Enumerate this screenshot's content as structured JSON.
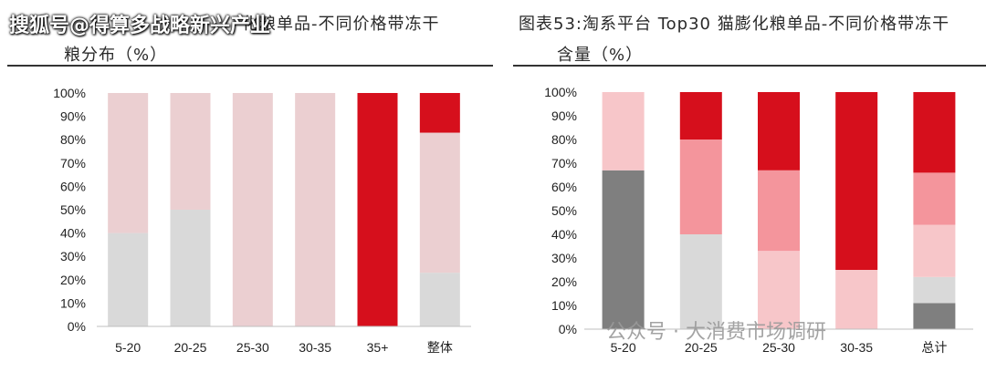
{
  "header": {
    "watermark": "搜狐号@得算多战略新兴产业",
    "left_title_line1": "化粮单品-不同价格带冻干",
    "left_title_line2": "粮分布（%）",
    "right_title_line1": "图表53:淘系平台 Top30 猫膨化粮单品-不同价格带冻干",
    "right_title_line2": "含量（%）"
  },
  "footer": {
    "watermark": "公众号 · 大消费市场调研"
  },
  "chart_data": [
    {
      "type": "bar",
      "stacked": true,
      "categories": [
        "5-20",
        "20-25",
        "25-30",
        "30-35",
        "35+",
        "整体"
      ],
      "yticks": [
        "0%",
        "10%",
        "20%",
        "30%",
        "40%",
        "50%",
        "60%",
        "70%",
        "80%",
        "90%",
        "100%"
      ],
      "ylim": [
        0,
        100
      ],
      "series": [
        {
          "color": "#d9d9d9",
          "values": [
            40,
            50,
            0,
            0,
            0,
            23
          ]
        },
        {
          "color": "#ebcfd1",
          "values": [
            60,
            50,
            100,
            100,
            0,
            60
          ]
        },
        {
          "color": "#d60f1c",
          "values": [
            0,
            0,
            0,
            0,
            100,
            17
          ]
        }
      ]
    },
    {
      "type": "bar",
      "stacked": true,
      "categories": [
        "5-20",
        "20-25",
        "25-30",
        "30-35",
        "总计"
      ],
      "yticks": [
        "0%",
        "10%",
        "20%",
        "30%",
        "40%",
        "50%",
        "60%",
        "70%",
        "80%",
        "90%",
        "100%"
      ],
      "ylim": [
        0,
        100
      ],
      "series": [
        {
          "color": "#7f7f7f",
          "values": [
            67,
            0,
            0,
            0,
            11
          ]
        },
        {
          "color": "#d9d9d9",
          "values": [
            0,
            40,
            0,
            0,
            11
          ]
        },
        {
          "color": "#f7c6c9",
          "values": [
            33,
            0,
            33,
            25,
            22
          ]
        },
        {
          "color": "#f4959c",
          "values": [
            0,
            40,
            34,
            0,
            22
          ]
        },
        {
          "color": "#d60f1c",
          "values": [
            0,
            20,
            33,
            75,
            34
          ]
        }
      ]
    }
  ]
}
